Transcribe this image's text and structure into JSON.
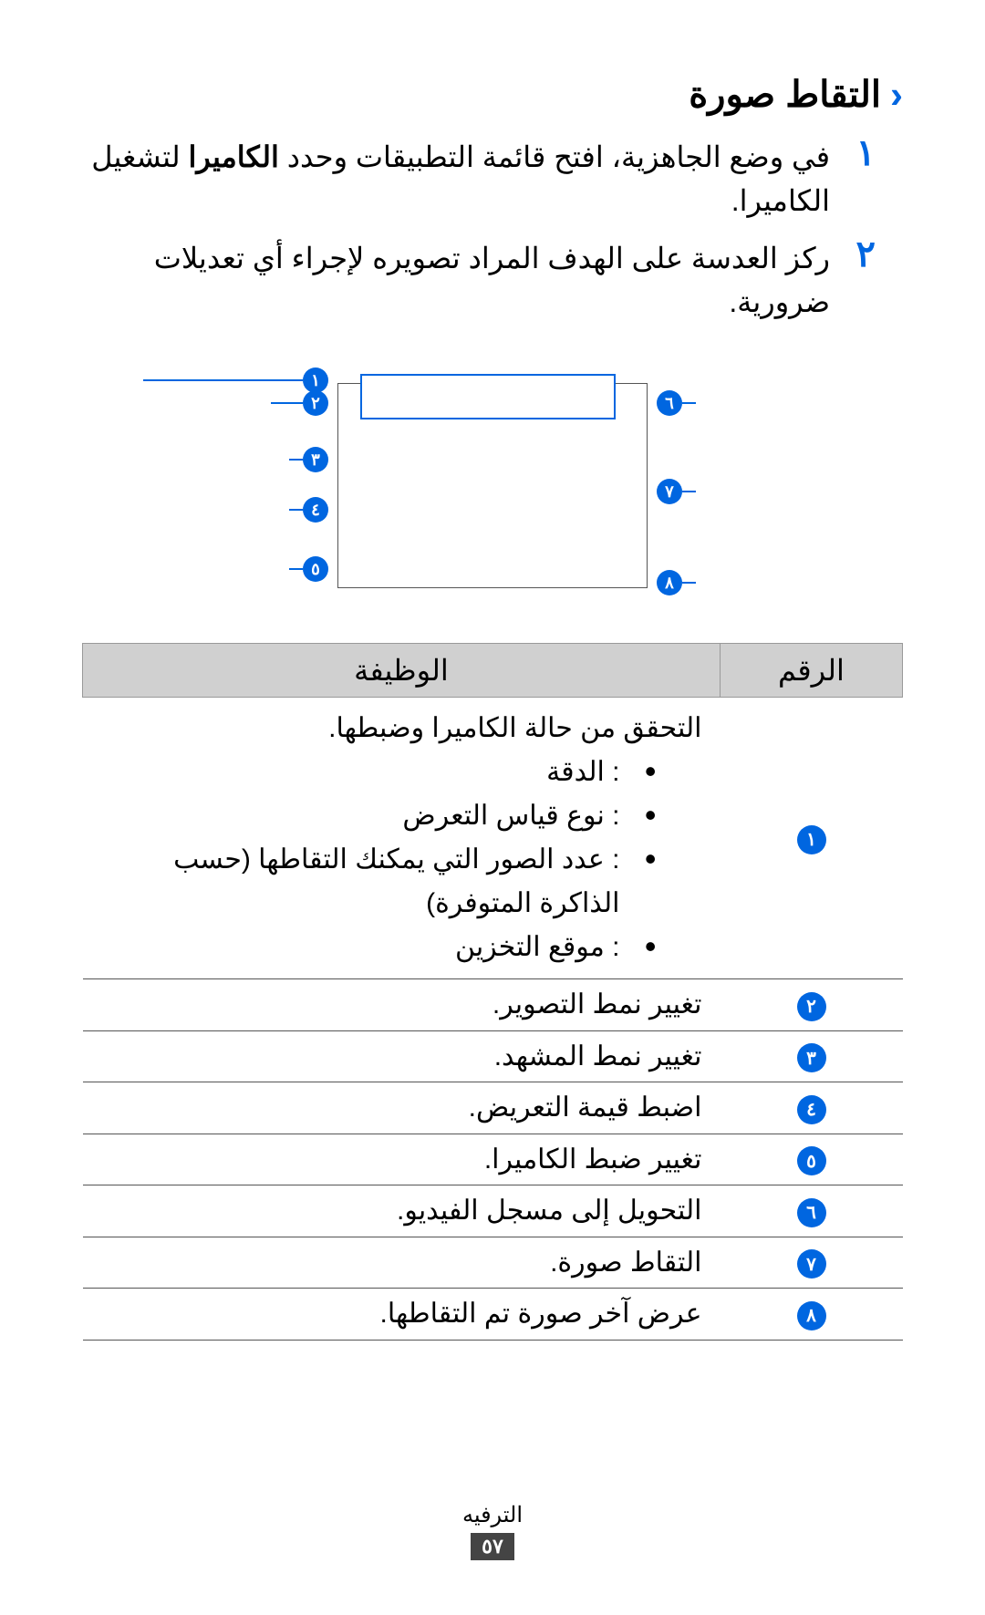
{
  "heading": {
    "title": "التقاط صورة"
  },
  "steps": {
    "s1": {
      "num": "١",
      "text_a": "في وضع الجاهزية، افتح قائمة التطبيقات وحدد ",
      "bold": "الكاميرا",
      "text_b": " لتشغيل الكاميرا."
    },
    "s2": {
      "num": "٢",
      "text": "ركز العدسة على الهدف المراد تصويره لإجراء أي تعديلات ضرورية."
    }
  },
  "callouts": {
    "n1": "١",
    "n2": "٢",
    "n3": "٣",
    "n4": "٤",
    "n5": "٥",
    "n6": "٦",
    "n7": "٧",
    "n8": "٨"
  },
  "table": {
    "head_num": "الرقم",
    "head_func": "الوظيفة",
    "rows": {
      "r1": {
        "badge": "١",
        "lead": "التحقق من حالة الكاميرا وضبطها.",
        "b1": ": الدقة",
        "b2": ": نوع قياس التعرض",
        "b3": ": عدد الصور التي يمكنك التقاطها (حسب الذاكرة المتوفرة)",
        "b4": ": موقع التخزين"
      },
      "r2": {
        "badge": "٢",
        "text": "تغيير نمط التصوير."
      },
      "r3": {
        "badge": "٣",
        "text": "تغيير نمط المشهد."
      },
      "r4": {
        "badge": "٤",
        "text": "اضبط قيمة التعريض."
      },
      "r5": {
        "badge": "٥",
        "text": "تغيير ضبط الكاميرا."
      },
      "r6": {
        "badge": "٦",
        "text": "التحويل إلى مسجل الفيديو."
      },
      "r7": {
        "badge": "٧",
        "text": "التقاط صورة."
      },
      "r8": {
        "badge": "٨",
        "text": "عرض آخر صورة تم التقاطها."
      }
    }
  },
  "footer": {
    "section": "الترفيه",
    "page": "٥٧"
  }
}
